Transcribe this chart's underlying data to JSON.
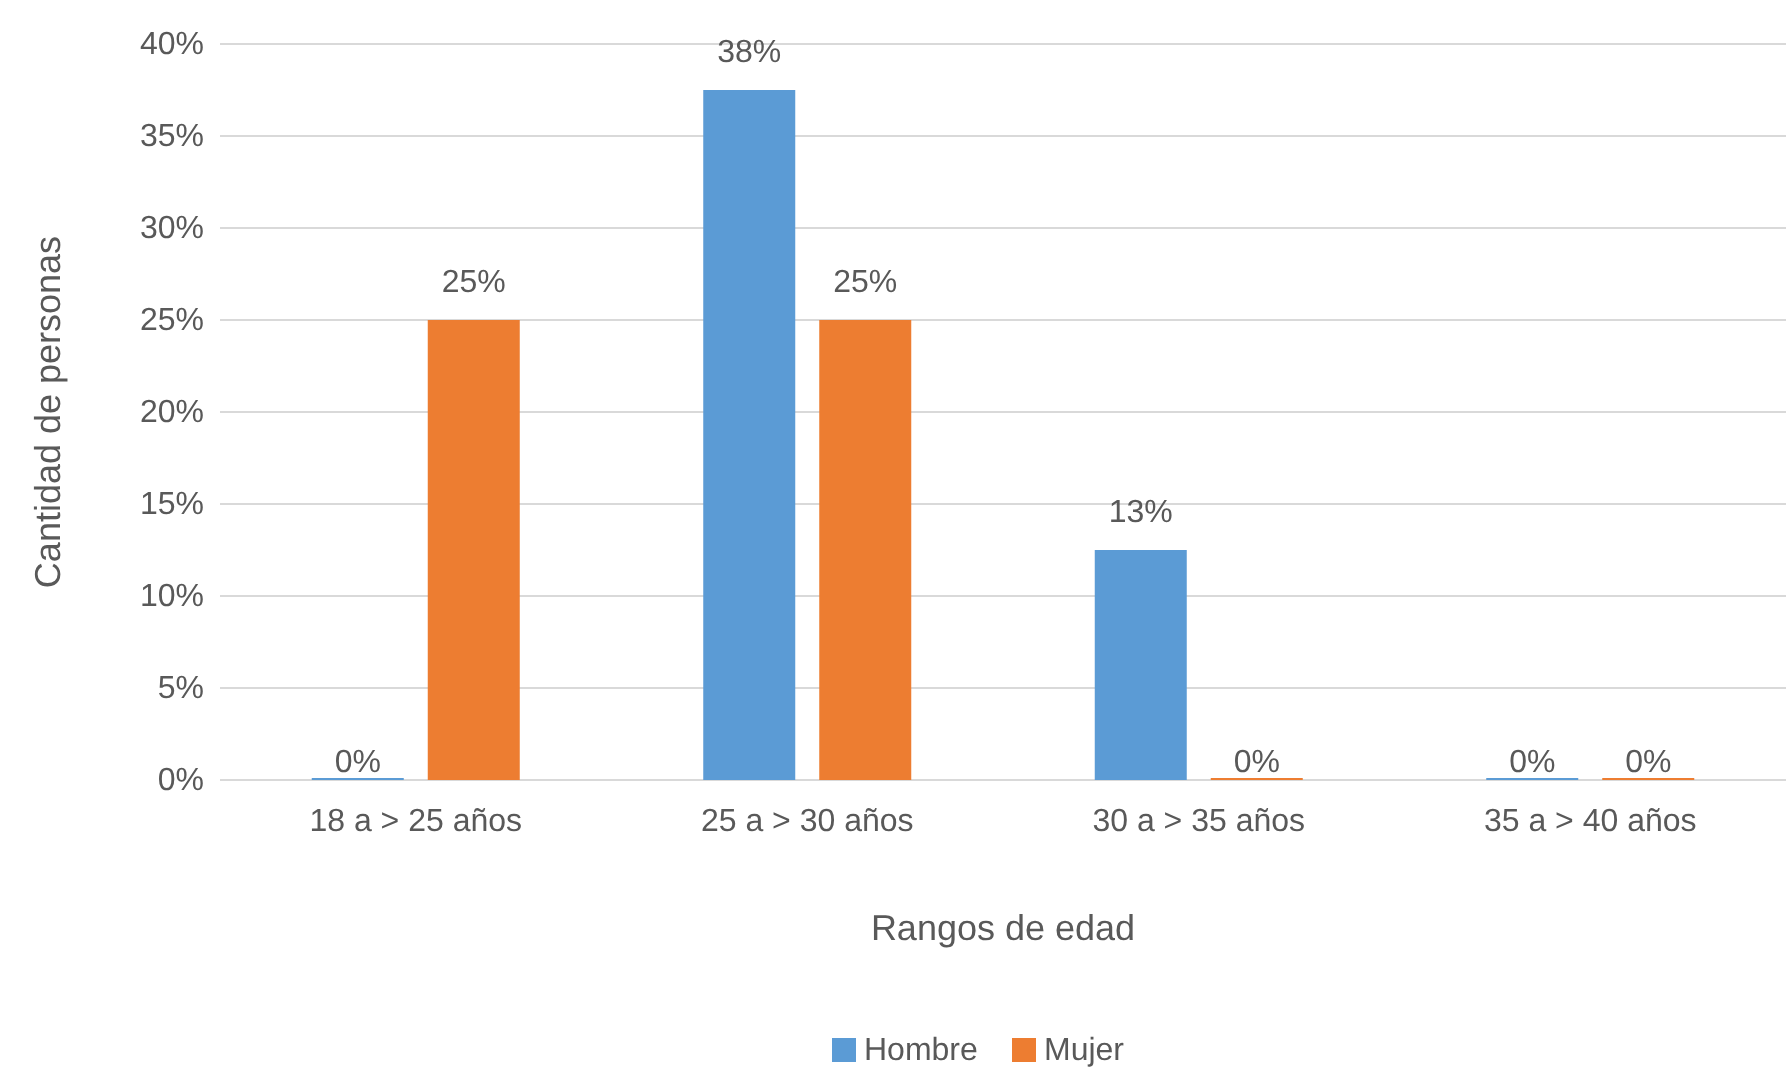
{
  "chart_data": {
    "type": "bar",
    "xlabel": "Rangos de edad",
    "ylabel": "Cantidad de personas",
    "categories": [
      "18 a > 25 años",
      "25 a > 30 años",
      "30 a > 35 años",
      "35 a > 40 años"
    ],
    "series": [
      {
        "name": "Hombre",
        "color": "#5b9bd5",
        "values": [
          0,
          37.5,
          12.5,
          0
        ],
        "value_labels": [
          "0%",
          "38%",
          "13%",
          "0%"
        ]
      },
      {
        "name": "Mujer",
        "color": "#ed7d31",
        "values": [
          25,
          25,
          0,
          0
        ],
        "value_labels": [
          "25%",
          "25%",
          "0%",
          "0%"
        ]
      }
    ],
    "ylim": [
      0,
      40
    ],
    "yticks": [
      {
        "value": 0,
        "label": "0%"
      },
      {
        "value": 5,
        "label": "5%"
      },
      {
        "value": 10,
        "label": "10%"
      },
      {
        "value": 15,
        "label": "15%"
      },
      {
        "value": 20,
        "label": "20%"
      },
      {
        "value": 25,
        "label": "25%"
      },
      {
        "value": 30,
        "label": "30%"
      },
      {
        "value": 35,
        "label": "35%"
      },
      {
        "value": 40,
        "label": "40%"
      }
    ],
    "grid": "y",
    "legend": "bottom"
  }
}
